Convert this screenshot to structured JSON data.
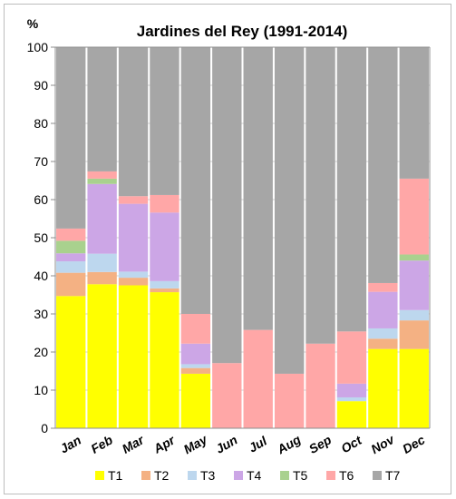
{
  "chart_data": {
    "type": "bar",
    "stacked": true,
    "title": "Jardines del Rey (1991-2014)",
    "ylabel": "%",
    "ylim": [
      0,
      100
    ],
    "yticks": [
      "0",
      "10",
      "20",
      "30",
      "40",
      "50",
      "60",
      "70",
      "80",
      "90",
      "100"
    ],
    "categories": [
      "Jan",
      "Feb",
      "Mar",
      "Apr",
      "May",
      "Jun",
      "Jul",
      "Aug",
      "Sep",
      "Oct",
      "Nov",
      "Dec"
    ],
    "legend_position": "bottom",
    "grid": "horizontal",
    "series": [
      {
        "name": "T1",
        "color": "#ffff00",
        "values": [
          34.7,
          37.8,
          37.5,
          35.7,
          14.3,
          0,
          0,
          0,
          0,
          7.1,
          20.8,
          20.8
        ]
      },
      {
        "name": "T2",
        "color": "#f4b183",
        "values": [
          6.1,
          3.2,
          2.0,
          1.0,
          1.5,
          0,
          0,
          0,
          0,
          0,
          2.7,
          7.5
        ]
      },
      {
        "name": "T3",
        "color": "#bdd7ee",
        "values": [
          3.0,
          4.8,
          1.6,
          1.9,
          1.0,
          0,
          0,
          0,
          0,
          1.0,
          2.7,
          2.7
        ]
      },
      {
        "name": "T4",
        "color": "#cca6e6",
        "values": [
          2.1,
          18.3,
          17.8,
          18.0,
          5.4,
          0,
          0,
          0,
          0,
          3.6,
          9.6,
          13.0
        ]
      },
      {
        "name": "T5",
        "color": "#a9d18e",
        "values": [
          3.3,
          1.4,
          0,
          0,
          0,
          0,
          0,
          0,
          0,
          0,
          0,
          1.6
        ]
      },
      {
        "name": "T6",
        "color": "#ffa7a7",
        "values": [
          3.2,
          1.9,
          2.0,
          4.6,
          7.8,
          17.1,
          25.8,
          14.3,
          22.2,
          13.7,
          2.3,
          19.9
        ]
      },
      {
        "name": "T7",
        "color": "#a6a6a6",
        "values": [
          47.6,
          32.6,
          39.1,
          38.8,
          70.0,
          82.9,
          74.2,
          85.7,
          77.8,
          74.6,
          61.9,
          34.5
        ]
      }
    ]
  }
}
